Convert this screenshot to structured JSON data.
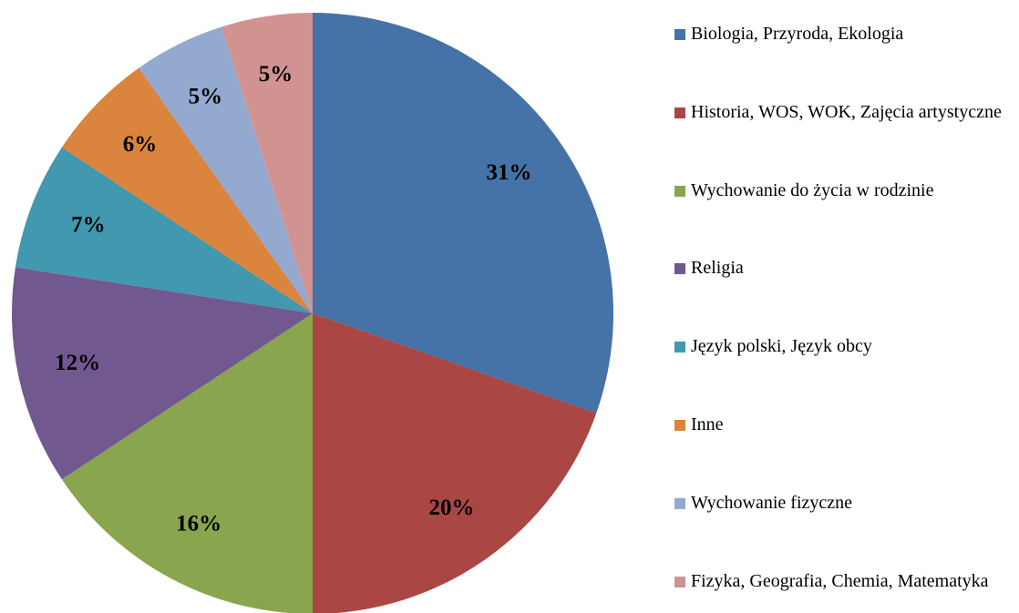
{
  "chart_data": {
    "type": "pie",
    "categories": [
      "Biologia, Przyroda, Ekologia",
      "Historia, WOS, WOK, Zajęcia artystyczne",
      "Wychowanie do życia w rodzinie",
      "Religia",
      "Język polski, Język obcy",
      "Inne",
      "Wychowanie fizyczne",
      "Fizyka, Geografia, Chemia, Matematyka"
    ],
    "values": [
      31,
      20,
      16,
      12,
      7,
      6,
      5,
      5
    ],
    "value_labels": [
      "31%",
      "20%",
      "16%",
      "12%",
      "7%",
      "6%",
      "5%",
      "5%"
    ],
    "colors": [
      "#4572a7",
      "#aa4643",
      "#89a54e",
      "#71588f",
      "#4198af",
      "#db843d",
      "#93a9cf",
      "#d19392"
    ],
    "legend": "right"
  }
}
